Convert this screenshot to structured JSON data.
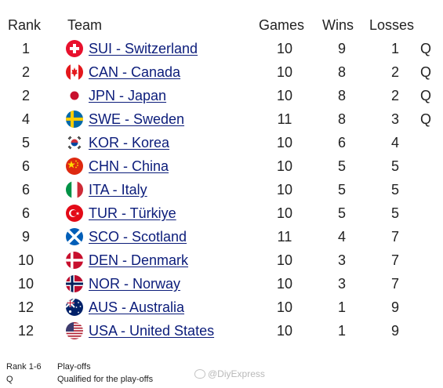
{
  "headers": {
    "rank": "Rank",
    "team": "Team",
    "games": "Games",
    "wins": "Wins",
    "losses": "Losses"
  },
  "rows": [
    {
      "rank": "1",
      "flag": "switzerland-flag-icon",
      "team": "SUI - Switzerland",
      "games": "10",
      "wins": "9",
      "losses": "1",
      "q": "Q"
    },
    {
      "rank": "2",
      "flag": "canada-flag-icon",
      "team": "CAN - Canada",
      "games": "10",
      "wins": "8",
      "losses": "2",
      "q": "Q"
    },
    {
      "rank": "2",
      "flag": "japan-flag-icon",
      "team": "JPN - Japan",
      "games": "10",
      "wins": "8",
      "losses": "2",
      "q": "Q"
    },
    {
      "rank": "4",
      "flag": "sweden-flag-icon",
      "team": "SWE - Sweden",
      "games": "11",
      "wins": "8",
      "losses": "3",
      "q": "Q"
    },
    {
      "rank": "5",
      "flag": "korea-flag-icon",
      "team": "KOR - Korea",
      "games": "10",
      "wins": "6",
      "losses": "4",
      "q": ""
    },
    {
      "rank": "6",
      "flag": "china-flag-icon",
      "team": "CHN - China",
      "games": "10",
      "wins": "5",
      "losses": "5",
      "q": ""
    },
    {
      "rank": "6",
      "flag": "italy-flag-icon",
      "team": "ITA - Italy",
      "games": "10",
      "wins": "5",
      "losses": "5",
      "q": ""
    },
    {
      "rank": "6",
      "flag": "turkiye-flag-icon",
      "team": "TUR - Türkiye",
      "games": "10",
      "wins": "5",
      "losses": "5",
      "q": ""
    },
    {
      "rank": "9",
      "flag": "scotland-flag-icon",
      "team": "SCO - Scotland",
      "games": "11",
      "wins": "4",
      "losses": "7",
      "q": ""
    },
    {
      "rank": "10",
      "flag": "denmark-flag-icon",
      "team": "DEN - Denmark",
      "games": "10",
      "wins": "3",
      "losses": "7",
      "q": ""
    },
    {
      "rank": "10",
      "flag": "norway-flag-icon",
      "team": "NOR - Norway",
      "games": "10",
      "wins": "3",
      "losses": "7",
      "q": ""
    },
    {
      "rank": "12",
      "flag": "australia-flag-icon",
      "team": "AUS - Australia",
      "games": "10",
      "wins": "1",
      "losses": "9",
      "q": ""
    },
    {
      "rank": "12",
      "flag": "usa-flag-icon",
      "team": "USA - United States",
      "games": "10",
      "wins": "1",
      "losses": "9",
      "q": ""
    }
  ],
  "legend": [
    {
      "key": "Rank 1-6",
      "value": "Play-offs"
    },
    {
      "key": "Q",
      "value": "Qualified for the play-offs"
    }
  ],
  "watermark": "@DiyExpress"
}
